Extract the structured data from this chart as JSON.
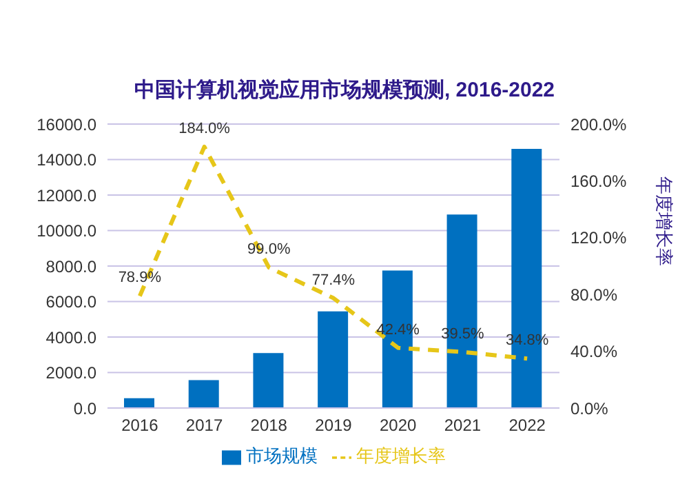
{
  "chart_data": {
    "type": "bar",
    "title": "中国计算机视觉应用市场规模预测, 2016-2022",
    "y2label": "年度增长率",
    "categories": [
      "2016",
      "2017",
      "2018",
      "2019",
      "2020",
      "2021",
      "2022"
    ],
    "series": [
      {
        "name": "市场规模",
        "color": "#0070c0",
        "values": [
          550,
          1570,
          3100,
          5450,
          7750,
          10900,
          14600
        ]
      },
      {
        "name": "年度增长率",
        "type": "line",
        "axis": "y2",
        "color": "#e6c619",
        "line_style": "dashed",
        "marker": "none",
        "values": [
          78.9,
          184.0,
          99.0,
          77.4,
          42.4,
          39.5,
          34.8
        ],
        "value_labels": [
          "78.9%",
          "184.0%",
          "99.0%",
          "77.4%",
          "42.4%",
          "39.5%",
          "34.8%"
        ]
      }
    ],
    "ylim": [
      0,
      16000
    ],
    "yticks": [
      {
        "value": 0,
        "label": "0.0"
      },
      {
        "value": 2000,
        "label": "2000.0"
      },
      {
        "value": 4000,
        "label": "4000.0"
      },
      {
        "value": 6000,
        "label": "6000.0"
      },
      {
        "value": 8000,
        "label": "8000.0"
      },
      {
        "value": 10000,
        "label": "10000.0"
      },
      {
        "value": 12000,
        "label": "12000.0"
      },
      {
        "value": 14000,
        "label": "14000.0"
      },
      {
        "value": 16000,
        "label": "16000.0"
      }
    ],
    "y2lim": [
      0,
      200
    ],
    "y2ticks": [
      {
        "value": 0,
        "label": "0.0%"
      },
      {
        "value": 40,
        "label": "40.0%"
      },
      {
        "value": 80,
        "label": "80.0%"
      },
      {
        "value": 120,
        "label": "120.0%"
      },
      {
        "value": 160,
        "label": "160.0%"
      },
      {
        "value": 200,
        "label": "200.0%"
      }
    ],
    "grid": "y",
    "legend": "bottom"
  }
}
